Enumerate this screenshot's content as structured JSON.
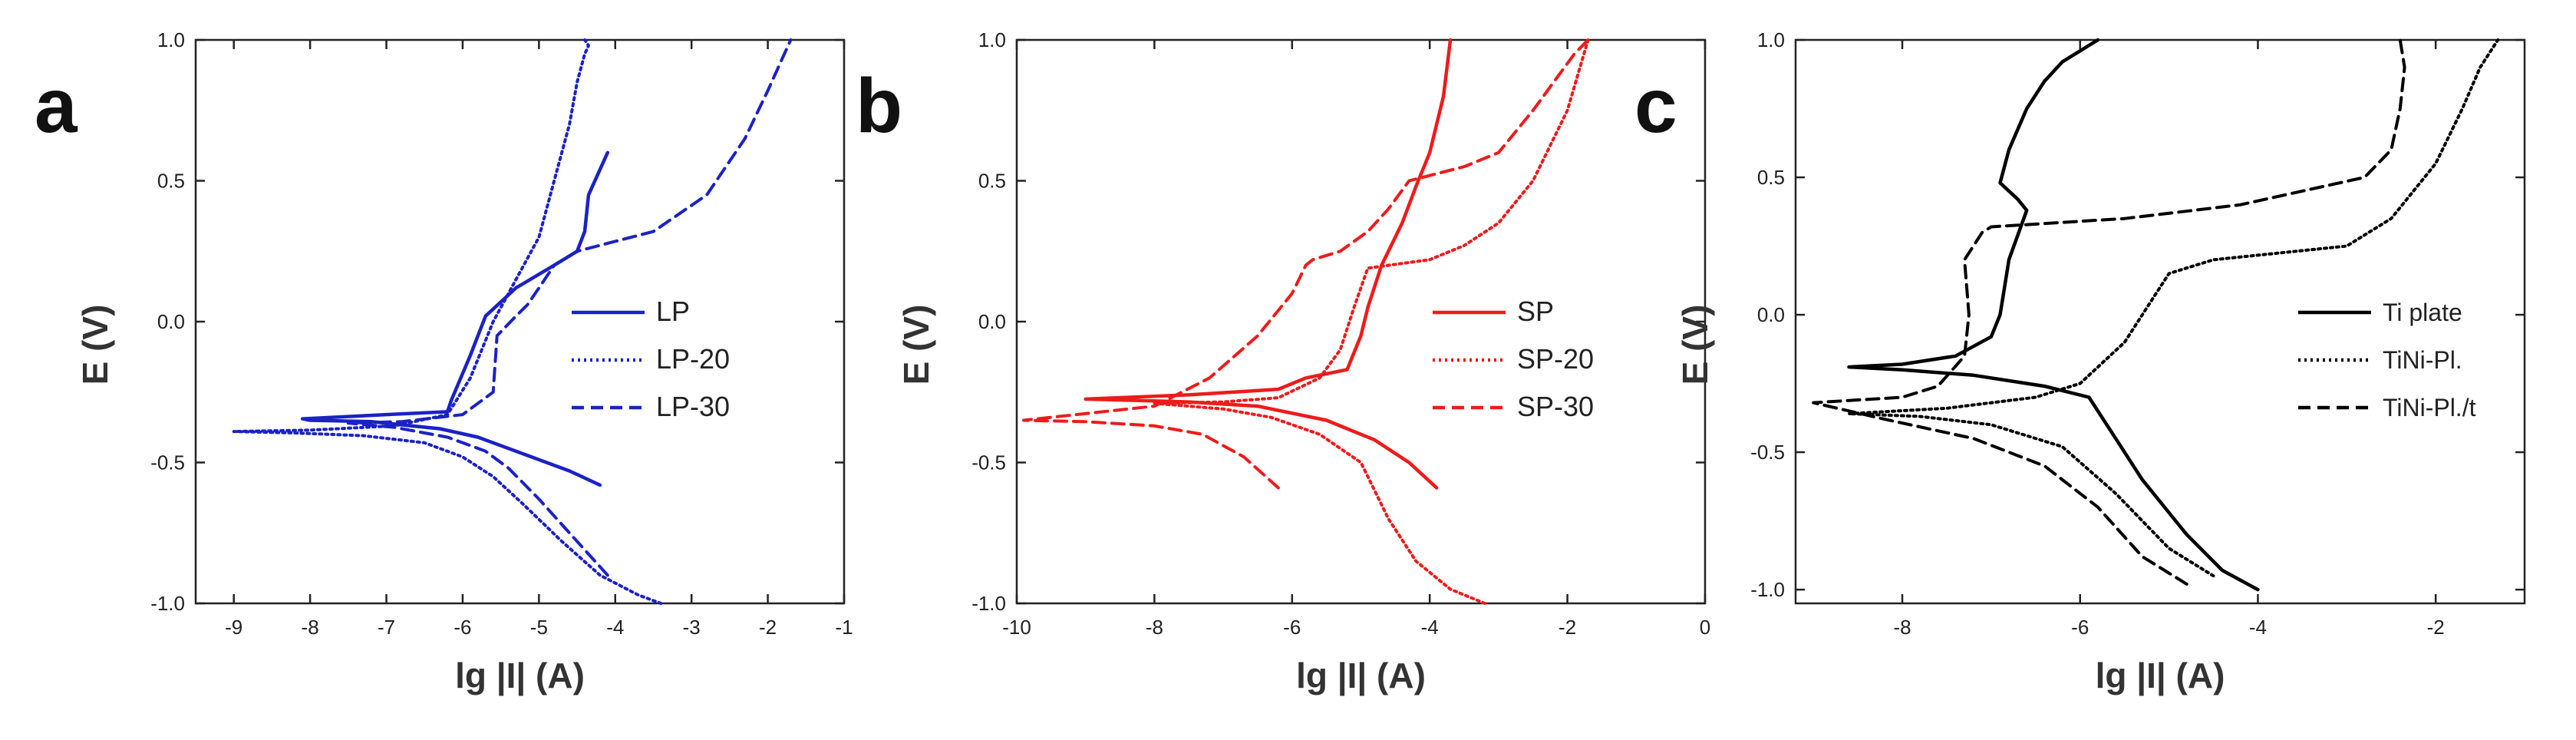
{
  "chart_data": [
    {
      "type": "line",
      "panel_label": "a",
      "xlabel": "lg |I| (A)",
      "ylabel": "E (V)",
      "xlim": [
        -9.5,
        -1
      ],
      "ylim": [
        -1.0,
        1.0
      ],
      "xticks": [
        -9,
        -8,
        -7,
        -6,
        -5,
        -4,
        -3,
        -2,
        -1
      ],
      "yticks": [
        -1.0,
        -0.5,
        0.0,
        0.5,
        1.0
      ],
      "legend_position": "right",
      "color": "#1b22c4",
      "series": [
        {
          "name": "LP",
          "style": "solid",
          "x": [
            -4.2,
            -4.6,
            -5.2,
            -5.8,
            -6.3,
            -7.2,
            -8.0,
            -8.1,
            -7.0,
            -6.2,
            -6.15,
            -5.9,
            -5.7,
            -5.3,
            -4.8,
            -4.5,
            -4.4,
            -4.35,
            -4.1
          ],
          "y": [
            -0.58,
            -0.53,
            -0.47,
            -0.41,
            -0.38,
            -0.355,
            -0.35,
            -0.345,
            -0.33,
            -0.32,
            -0.28,
            -0.12,
            0.02,
            0.12,
            0.2,
            0.25,
            0.32,
            0.45,
            0.6
          ]
        },
        {
          "name": "LP-20",
          "style": "dotted",
          "x": [
            -3.4,
            -3.7,
            -4.2,
            -4.7,
            -5.2,
            -5.6,
            -6.0,
            -6.5,
            -7.3,
            -8.2,
            -9.0,
            -8.0,
            -6.9,
            -6.2,
            -5.9,
            -5.6,
            -5.3,
            -5.0,
            -4.8,
            -4.6,
            -4.5,
            -4.4,
            -4.35,
            -4.4
          ],
          "y": [
            -1.0,
            -0.97,
            -0.9,
            -0.78,
            -0.65,
            -0.55,
            -0.48,
            -0.43,
            -0.405,
            -0.395,
            -0.39,
            -0.385,
            -0.37,
            -0.33,
            -0.2,
            0.0,
            0.15,
            0.3,
            0.5,
            0.7,
            0.85,
            0.95,
            0.98,
            1.0
          ]
        },
        {
          "name": "LP-30",
          "style": "dashed",
          "x": [
            -4.1,
            -4.5,
            -5.0,
            -5.4,
            -5.7,
            -6.2,
            -6.9,
            -7.5,
            -6.8,
            -6.0,
            -5.6,
            -5.55,
            -5.3,
            -5.15,
            -5.0,
            -4.8,
            -4.5,
            -3.5,
            -2.8,
            -2.3,
            -2.0,
            -1.7
          ],
          "y": [
            -0.9,
            -0.78,
            -0.63,
            -0.52,
            -0.46,
            -0.41,
            -0.375,
            -0.36,
            -0.355,
            -0.33,
            -0.25,
            -0.05,
            0.02,
            0.06,
            0.12,
            0.2,
            0.25,
            0.32,
            0.45,
            0.65,
            0.82,
            1.0
          ]
        }
      ]
    },
    {
      "type": "line",
      "panel_label": "b",
      "xlabel": "lg |I| (A)",
      "ylabel": "E (V)",
      "xlim": [
        -10,
        0
      ],
      "ylim": [
        -1.0,
        1.0
      ],
      "xticks": [
        -10,
        -8,
        -6,
        -4,
        -2,
        0
      ],
      "yticks": [
        -1.0,
        -0.5,
        0.0,
        0.5,
        1.0
      ],
      "legend_position": "right",
      "color": "#ee1b1b",
      "series": [
        {
          "name": "SP",
          "style": "solid",
          "x": [
            -3.9,
            -4.3,
            -4.8,
            -5.5,
            -6.5,
            -7.5,
            -9.0,
            -7.5,
            -6.2,
            -5.8,
            -5.2,
            -5.0,
            -4.9,
            -4.7,
            -4.4,
            -4.2,
            -4.0,
            -3.8,
            -3.7
          ],
          "y": [
            -0.59,
            -0.5,
            -0.42,
            -0.35,
            -0.3,
            -0.285,
            -0.275,
            -0.26,
            -0.24,
            -0.2,
            -0.17,
            -0.05,
            0.05,
            0.2,
            0.35,
            0.48,
            0.6,
            0.8,
            1.0
          ]
        },
        {
          "name": "SP-20",
          "style": "dotted",
          "x": [
            -3.2,
            -3.7,
            -4.2,
            -4.6,
            -5.0,
            -5.6,
            -6.3,
            -7.0,
            -8.0,
            -7.0,
            -6.2,
            -5.6,
            -5.3,
            -5.1,
            -4.9,
            -4.6,
            -4.0,
            -3.5,
            -3.0,
            -2.5,
            -2.0,
            -1.7
          ],
          "y": [
            -1.0,
            -0.95,
            -0.85,
            -0.7,
            -0.5,
            -0.4,
            -0.34,
            -0.31,
            -0.29,
            -0.285,
            -0.27,
            -0.2,
            -0.1,
            0.05,
            0.19,
            0.2,
            0.22,
            0.27,
            0.35,
            0.5,
            0.75,
            1.0
          ]
        },
        {
          "name": "SP-30",
          "style": "dashed",
          "x": [
            -6.2,
            -6.7,
            -7.3,
            -8.0,
            -9.0,
            -9.9,
            -8.0,
            -7.2,
            -6.5,
            -6.0,
            -5.8,
            -5.7,
            -5.3,
            -4.9,
            -4.6,
            -4.3,
            -3.5,
            -3.0,
            -2.5,
            -2.2,
            -1.9,
            -1.7
          ],
          "y": [
            -0.59,
            -0.48,
            -0.4,
            -0.37,
            -0.355,
            -0.35,
            -0.3,
            -0.2,
            -0.05,
            0.1,
            0.2,
            0.22,
            0.25,
            0.32,
            0.4,
            0.5,
            0.55,
            0.6,
            0.75,
            0.85,
            0.95,
            1.0
          ]
        }
      ]
    },
    {
      "type": "line",
      "panel_label": "c",
      "xlabel": "lg |I| (A)",
      "ylabel": "E (V)",
      "xlim": [
        -9.2,
        -1
      ],
      "ylim": [
        -1.05,
        1.0
      ],
      "xticks": [
        -8,
        -6,
        -4,
        -2
      ],
      "yticks": [
        -1.0,
        -0.5,
        0.0,
        0.5,
        1.0
      ],
      "legend_position": "right",
      "color": "#000000",
      "series": [
        {
          "name": "Ti plate",
          "style": "solid",
          "x": [
            -4.0,
            -4.4,
            -4.8,
            -5.3,
            -5.6,
            -5.9,
            -6.4,
            -7.2,
            -8.0,
            -8.6,
            -8.0,
            -7.4,
            -7.0,
            -6.9,
            -6.85,
            -6.8,
            -6.6,
            -6.7,
            -6.9,
            -6.8,
            -6.6,
            -6.4,
            -6.2,
            -5.8
          ],
          "y": [
            -1.0,
            -0.93,
            -0.8,
            -0.6,
            -0.45,
            -0.3,
            -0.26,
            -0.22,
            -0.2,
            -0.19,
            -0.18,
            -0.15,
            -0.08,
            0.0,
            0.1,
            0.2,
            0.38,
            0.42,
            0.48,
            0.6,
            0.75,
            0.85,
            0.92,
            1.0
          ]
        },
        {
          "name": "TiNi-Pl.",
          "style": "dotted",
          "x": [
            -4.5,
            -5.0,
            -5.6,
            -6.2,
            -7.0,
            -7.8,
            -8.6,
            -7.5,
            -6.5,
            -6.0,
            -5.5,
            -5.2,
            -5.0,
            -4.5,
            -3.0,
            -2.5,
            -2.0,
            -1.7,
            -1.5,
            -1.3
          ],
          "y": [
            -0.95,
            -0.85,
            -0.65,
            -0.48,
            -0.4,
            -0.37,
            -0.36,
            -0.34,
            -0.3,
            -0.25,
            -0.1,
            0.05,
            0.15,
            0.2,
            0.25,
            0.35,
            0.55,
            0.75,
            0.9,
            1.0
          ]
        },
        {
          "name": "TiNi-Pl./t",
          "style": "dashed",
          "x": [
            -4.8,
            -5.3,
            -5.8,
            -6.4,
            -7.2,
            -8.2,
            -9.0,
            -8.0,
            -7.6,
            -7.3,
            -7.25,
            -7.3,
            -7.1,
            -7.0,
            -5.5,
            -4.2,
            -3.5,
            -2.8,
            -2.5,
            -2.4,
            -2.35,
            -2.4
          ],
          "y": [
            -0.98,
            -0.88,
            -0.7,
            -0.55,
            -0.45,
            -0.38,
            -0.32,
            -0.3,
            -0.26,
            -0.15,
            0.0,
            0.2,
            0.3,
            0.32,
            0.35,
            0.4,
            0.45,
            0.5,
            0.6,
            0.75,
            0.9,
            1.0
          ]
        }
      ]
    }
  ]
}
